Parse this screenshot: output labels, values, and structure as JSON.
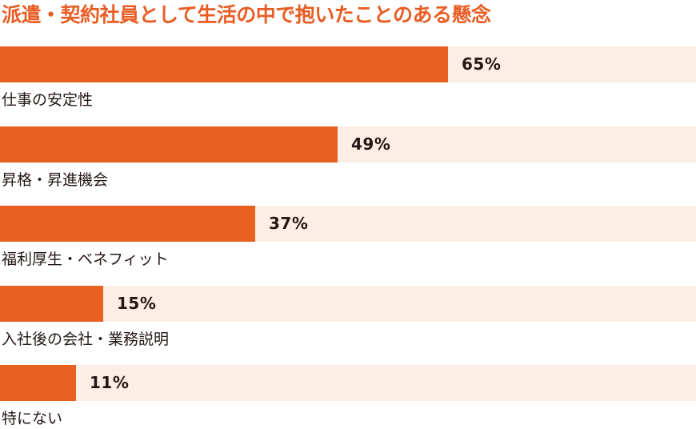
{
  "chart_data": {
    "type": "bar",
    "orientation": "horizontal",
    "title": "派遣・契約社員として生活の中で抱いたことのある懸念",
    "categories": [
      "仕事の安定性",
      "昇格・昇進機会",
      "福利厚生・ベネフィット",
      "入社後の会社・業務説明",
      "特にない"
    ],
    "values": [
      65,
      49,
      37,
      15,
      11
    ],
    "value_labels": [
      "65%",
      "49%",
      "37%",
      "15%",
      "11%"
    ],
    "ylim": [
      0,
      100
    ],
    "grid": false,
    "colors": {
      "bar": "#e8601f",
      "track": "#fdeee5",
      "title": "#e85d24",
      "text": "#231815"
    }
  }
}
